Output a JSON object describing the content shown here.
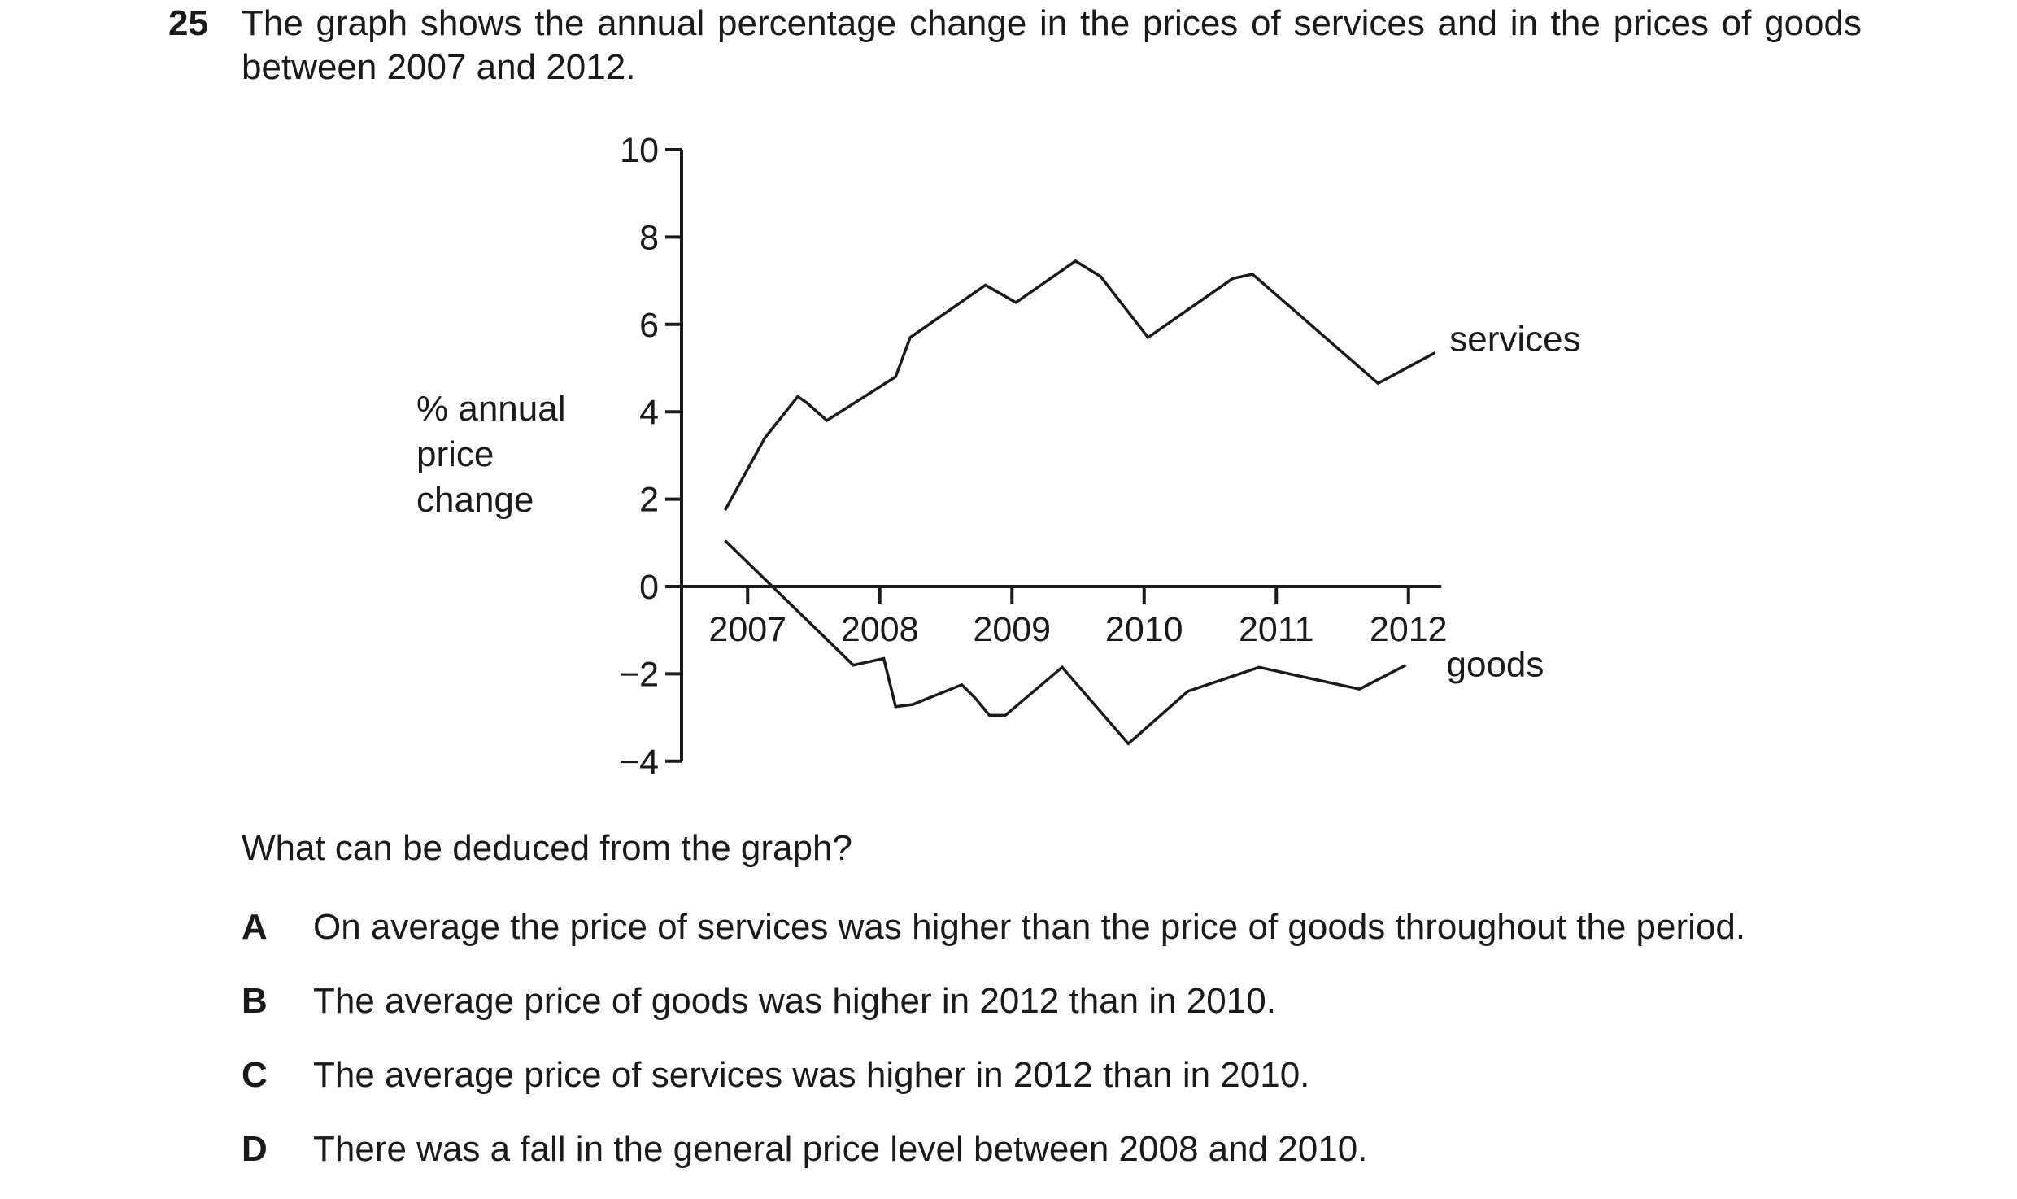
{
  "question": {
    "number": "25",
    "stem": "The graph shows the annual percentage change in the prices of services and in the prices of goods between 2007 and 2012.",
    "prompt": "What can be deduced from the graph?",
    "options": [
      {
        "letter": "A",
        "text": "On average the price of services was higher than the price of goods throughout the period."
      },
      {
        "letter": "B",
        "text": "The average price of goods was higher in 2012 than in 2010."
      },
      {
        "letter": "C",
        "text": "The average price of services was higher in 2012 than in 2010."
      },
      {
        "letter": "D",
        "text": "There was a fall in the general price level between 2008 and 2010."
      }
    ]
  },
  "chart_data": {
    "type": "line",
    "title": "",
    "xlabel": "",
    "ylabel": "% annual price change",
    "ylabel_lines": [
      "% annual",
      "price",
      "change"
    ],
    "x_ticks": [
      "2007",
      "2008",
      "2009",
      "2010",
      "2011",
      "2012"
    ],
    "y_ticks": [
      "10",
      "8",
      "6",
      "4",
      "2",
      "0",
      "−2",
      "−4"
    ],
    "y_tick_values": [
      10,
      8,
      6,
      4,
      2,
      0,
      -2,
      -4
    ],
    "xlim": [
      2006.7,
      2012.2
    ],
    "ylim": [
      -4,
      10
    ],
    "grid": false,
    "legend": "line-end labels",
    "series": [
      {
        "name": "services",
        "x": [
          2006.83,
          2007.13,
          2007.38,
          2007.45,
          2007.6,
          2008.12,
          2008.23,
          2008.8,
          2009.03,
          2009.48,
          2009.67,
          2010.03,
          2010.67,
          2010.82,
          2011.77,
          2012.2
        ],
        "y": [
          1.75,
          3.4,
          4.35,
          4.2,
          3.8,
          4.8,
          5.7,
          6.9,
          6.5,
          7.45,
          7.1,
          5.7,
          7.05,
          7.15,
          4.65,
          5.35
        ]
      },
      {
        "name": "goods",
        "x": [
          2006.83,
          2007.8,
          2008.03,
          2008.12,
          2008.25,
          2008.62,
          2008.72,
          2008.83,
          2008.95,
          2009.38,
          2009.88,
          2010.33,
          2010.87,
          2011.63,
          2011.98
        ],
        "y": [
          1.05,
          -1.8,
          -1.65,
          -2.75,
          -2.7,
          -2.25,
          -2.55,
          -2.95,
          -2.95,
          -1.85,
          -3.6,
          -2.4,
          -1.85,
          -2.35,
          -1.8
        ]
      }
    ]
  }
}
